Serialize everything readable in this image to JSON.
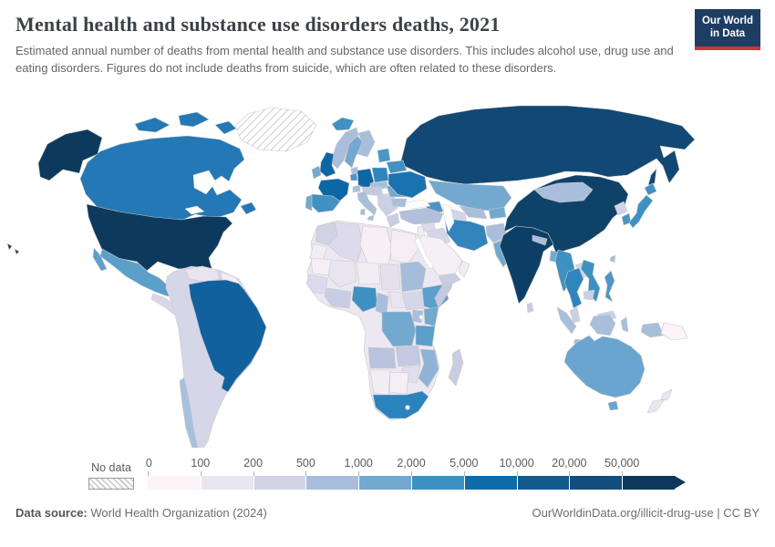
{
  "header": {
    "title": "Mental health and substance use disorders deaths, 2021",
    "subtitle": "Estimated annual number of deaths from mental health and substance use disorders. This includes alcohol use, drug use and eating disorders. Figures do not include deaths from suicide, which are often related to these disorders.",
    "logo": {
      "line1": "Our World",
      "line2": "in Data",
      "bg_color": "#1d3d63",
      "accent_color": "#cf3439"
    }
  },
  "legend": {
    "no_data_label": "No data",
    "ticks": [
      "0",
      "100",
      "200",
      "500",
      "1,000",
      "2,000",
      "5,000",
      "10,000",
      "20,000",
      "50,000"
    ],
    "bins": [
      {
        "range": "0–100",
        "color": "#fdf3f9"
      },
      {
        "range": "100–200",
        "color": "#e9e5f1"
      },
      {
        "range": "200–500",
        "color": "#d2d2e7"
      },
      {
        "range": "500–1,000",
        "color": "#a7bddb"
      },
      {
        "range": "1,000–2,000",
        "color": "#74a9cf"
      },
      {
        "range": "2,000–5,000",
        "color": "#3d91c2"
      },
      {
        "range": "5,000–10,000",
        "color": "#0e6ba8"
      },
      {
        "range": "10,000–20,000",
        "color": "#135a8e"
      },
      {
        "range": "20,000–50,000",
        "color": "#124e7d"
      },
      {
        "range": "50,000+",
        "color": "#0d3a5c"
      }
    ]
  },
  "chart_data": {
    "type": "choropleth-map",
    "title": "Mental health and substance use disorders deaths, 2021",
    "unit": "deaths per year",
    "legend_bins": [
      "0",
      "100",
      "200",
      "500",
      "1,000",
      "2,000",
      "5,000",
      "10,000",
      "20,000",
      "50,000"
    ],
    "no_data": [
      "Greenland",
      "New Zealand (pale)",
      "Lesotho"
    ]
  },
  "map": {
    "ocean_color": "#ffffff",
    "border_color": "#c9c9c9",
    "regions": [
      {
        "id": "greenland",
        "label": "Greenland",
        "no_data": true,
        "color": "none"
      },
      {
        "id": "canada",
        "label": "Canada",
        "color": "#2478b5"
      },
      {
        "id": "usa",
        "label": "United States",
        "color": "#0d3a5c"
      },
      {
        "id": "mexico",
        "label": "Mexico",
        "color": "#5b9fcb"
      },
      {
        "id": "central-america",
        "label": "Central America",
        "color": "#d8d7ea"
      },
      {
        "id": "cuba",
        "label": "Cuba",
        "color": "#a9c0dd"
      },
      {
        "id": "hispaniola",
        "label": "Hispaniola",
        "color": "#d8d7ea"
      },
      {
        "id": "sa-base",
        "label": "Andean and Southern South America",
        "color": "#d6d6e9"
      },
      {
        "id": "venezuela",
        "label": "Venezuela",
        "color": "#e8e5f1"
      },
      {
        "id": "guianas",
        "label": "Guyana and Suriname",
        "color": "#f2ecf4"
      },
      {
        "id": "brazil",
        "label": "Brazil",
        "color": "#12619f"
      },
      {
        "id": "chile",
        "label": "Chile",
        "color": "#a9c0dd"
      },
      {
        "id": "iceland",
        "label": "Iceland",
        "color": "#4191c2"
      },
      {
        "id": "norway",
        "label": "Norway",
        "color": "#a9bedb"
      },
      {
        "id": "sweden",
        "label": "Sweden",
        "color": "#74a9cf"
      },
      {
        "id": "finland",
        "label": "Finland",
        "color": "#a9bedb"
      },
      {
        "id": "denmark",
        "label": "Denmark",
        "color": "#a9bedb"
      },
      {
        "id": "uk",
        "label": "United Kingdom",
        "color": "#0e67a5"
      },
      {
        "id": "ireland",
        "label": "Ireland",
        "color": "#74a9cf"
      },
      {
        "id": "france",
        "label": "France",
        "color": "#0e67a5"
      },
      {
        "id": "spain",
        "label": "Spain",
        "color": "#4191c2"
      },
      {
        "id": "portugal",
        "label": "Portugal",
        "color": "#74a9cf"
      },
      {
        "id": "germany",
        "label": "Germany",
        "color": "#0e67a5"
      },
      {
        "id": "benelux",
        "label": "Benelux",
        "color": "#4c96c6"
      },
      {
        "id": "poland",
        "label": "Poland",
        "color": "#2e86bd"
      },
      {
        "id": "czech-slovakia",
        "label": "Czechia and Slovakia",
        "color": "#a9bedb"
      },
      {
        "id": "switzerland",
        "label": "Switzerland",
        "color": "#a9bedb"
      },
      {
        "id": "austria-hungary",
        "label": "Austria and Hungary",
        "color": "#c3c9e1"
      },
      {
        "id": "italy",
        "label": "Italy",
        "color": "#a9bedb"
      },
      {
        "id": "balkans",
        "label": "Balkans",
        "color": "#ccd0e5"
      },
      {
        "id": "greece",
        "label": "Greece",
        "color": "#c9cde3"
      },
      {
        "id": "romania",
        "label": "Romania",
        "color": "#74a9cf"
      },
      {
        "id": "bulgaria",
        "label": "Bulgaria",
        "color": "#a9bedb"
      },
      {
        "id": "ukraine",
        "label": "Ukraine",
        "color": "#1a72b0"
      },
      {
        "id": "belarus",
        "label": "Belarus",
        "color": "#4191c2"
      },
      {
        "id": "baltics",
        "label": "Baltic states",
        "color": "#4c96c6"
      },
      {
        "id": "russia",
        "label": "Russia",
        "color": "#114874"
      },
      {
        "id": "kazakhstan",
        "label": "Kazakhstan",
        "color": "#74a9cf"
      },
      {
        "id": "uzbekistan",
        "label": "Uzbekistan",
        "color": "#a9bedb"
      },
      {
        "id": "turkmenistan",
        "label": "Turkmenistan",
        "color": "#d3d4e8"
      },
      {
        "id": "kyrgyzstan-tajikistan",
        "label": "Kyrgyzstan and Tajikistan",
        "color": "#74a9cf"
      },
      {
        "id": "caucasus",
        "label": "Caucasus",
        "color": "#4c96c6"
      },
      {
        "id": "turkey",
        "label": "Turkey",
        "color": "#b3bfdb"
      },
      {
        "id": "syria",
        "label": "Syria",
        "color": "#dcdaec"
      },
      {
        "id": "levant",
        "label": "Levant",
        "color": "#f2ecf4"
      },
      {
        "id": "iraq",
        "label": "Iraq",
        "color": "#d4d5e8"
      },
      {
        "id": "iran",
        "label": "Iran",
        "color": "#3184bc"
      },
      {
        "id": "afghanistan",
        "label": "Afghanistan",
        "color": "#a9bedb"
      },
      {
        "id": "pakistan",
        "label": "Pakistan",
        "color": "#74a9cf"
      },
      {
        "id": "saudi-arabia",
        "label": "Saudi Arabia",
        "color": "#f7eff6"
      },
      {
        "id": "yemen",
        "label": "Yemen",
        "color": "#c9cde3"
      },
      {
        "id": "oman",
        "label": "Oman",
        "color": "#f2ecf4"
      },
      {
        "id": "india",
        "label": "India",
        "color": "#0d3f66"
      },
      {
        "id": "nepal",
        "label": "Nepal",
        "color": "#a9bedb"
      },
      {
        "id": "bangladesh",
        "label": "Bangladesh",
        "color": "#74a9cf"
      },
      {
        "id": "sri-lanka",
        "label": "Sri Lanka",
        "color": "#c9cde3"
      },
      {
        "id": "myanmar",
        "label": "Myanmar",
        "color": "#3d91c2"
      },
      {
        "id": "china",
        "label": "China",
        "color": "#0e4268"
      },
      {
        "id": "mongolia",
        "label": "Mongolia",
        "color": "#a9bedb"
      },
      {
        "id": "north-korea",
        "label": "North Korea",
        "color": "#d3d4e8"
      },
      {
        "id": "south-korea",
        "label": "South Korea",
        "color": "#4c96c6"
      },
      {
        "id": "japan",
        "label": "Japan",
        "color": "#3d91c2"
      },
      {
        "id": "taiwan",
        "label": "Taiwan",
        "color": "#a9bedb"
      },
      {
        "id": "philippines",
        "label": "Philippines",
        "color": "#4c96c6"
      },
      {
        "id": "laos",
        "label": "Laos",
        "color": "#d3d4e8"
      },
      {
        "id": "thailand",
        "label": "Thailand",
        "color": "#2e86bd"
      },
      {
        "id": "vietnam",
        "label": "Vietnam",
        "color": "#3d91c2"
      },
      {
        "id": "cambodia",
        "label": "Cambodia",
        "color": "#ccd0e5"
      },
      {
        "id": "malaysia",
        "label": "Malaysia",
        "color": "#ccd0e5"
      },
      {
        "id": "indonesia",
        "label": "Indonesia",
        "color": "#a9bedb"
      },
      {
        "id": "papua-new-guinea",
        "label": "Papua New Guinea",
        "color": "#fdf3f9"
      },
      {
        "id": "australia",
        "label": "Australia",
        "color": "#6aa5d0"
      },
      {
        "id": "new-zealand",
        "label": "New Zealand",
        "color": "#e9e6f1"
      },
      {
        "id": "africa-base",
        "label": "Other Africa",
        "color": "#ece8f2"
      },
      {
        "id": "morocco",
        "label": "Morocco",
        "color": "#d2d2e7"
      },
      {
        "id": "western-sahara",
        "label": "Western Sahara",
        "color": "#f2ecf4"
      },
      {
        "id": "algeria",
        "label": "Algeria",
        "color": "#dcdaec"
      },
      {
        "id": "libya",
        "label": "Libya",
        "color": "#f7eff6"
      },
      {
        "id": "egypt",
        "label": "Egypt",
        "color": "#f5ecf4"
      },
      {
        "id": "mauritania",
        "label": "Mauritania",
        "color": "#f5eef5"
      },
      {
        "id": "mali",
        "label": "Mali",
        "color": "#e8e4f0"
      },
      {
        "id": "niger",
        "label": "Niger",
        "color": "#f2ecf4"
      },
      {
        "id": "chad",
        "label": "Chad",
        "color": "#e4e0ee"
      },
      {
        "id": "sudan",
        "label": "Sudan",
        "color": "#a6bcdb"
      },
      {
        "id": "west-africa",
        "label": "West Africa",
        "color": "#dcdaec"
      },
      {
        "id": "ghana-ivory",
        "label": "Ghana and Côte d'Ivoire",
        "color": "#c9cde3"
      },
      {
        "id": "nigeria",
        "label": "Nigeria",
        "color": "#3d91c2"
      },
      {
        "id": "cameroon",
        "label": "Cameroon",
        "color": "#a9bedb"
      },
      {
        "id": "central-african-republic",
        "label": "Central African Republic",
        "color": "#e8e4f0"
      },
      {
        "id": "south-sudan",
        "label": "South Sudan",
        "color": "#d6d6e9"
      },
      {
        "id": "ethiopia",
        "label": "Ethiopia",
        "color": "#5b9fca"
      },
      {
        "id": "somalia",
        "label": "Somalia",
        "color": "#c3c9e1"
      },
      {
        "id": "kenya",
        "label": "Kenya",
        "color": "#74a9cf"
      },
      {
        "id": "uganda",
        "label": "Uganda",
        "color": "#a9bedb"
      },
      {
        "id": "dr-congo",
        "label": "Democratic Republic of Congo",
        "color": "#74a9cf"
      },
      {
        "id": "tanzania",
        "label": "Tanzania",
        "color": "#5b9fca"
      },
      {
        "id": "angola",
        "label": "Angola",
        "color": "#b9c3de"
      },
      {
        "id": "zambia",
        "label": "Zambia",
        "color": "#c3c9e1"
      },
      {
        "id": "mozambique",
        "label": "Mozambique",
        "color": "#8fb3d6"
      },
      {
        "id": "zimbabwe",
        "label": "Zimbabwe",
        "color": "#e0ddec"
      },
      {
        "id": "namibia",
        "label": "Namibia",
        "color": "#f2ecf4"
      },
      {
        "id": "botswana",
        "label": "Botswana",
        "color": "#f5eef5"
      },
      {
        "id": "south-africa",
        "label": "South Africa",
        "color": "#2b83bd"
      },
      {
        "id": "madagascar",
        "label": "Madagascar",
        "color": "#c9cce3"
      }
    ]
  },
  "footer": {
    "source_label": "Data source:",
    "source_value": " World Health Organization (2024)",
    "right_text": "OurWorldinData.org/illicit-drug-use | CC BY"
  }
}
